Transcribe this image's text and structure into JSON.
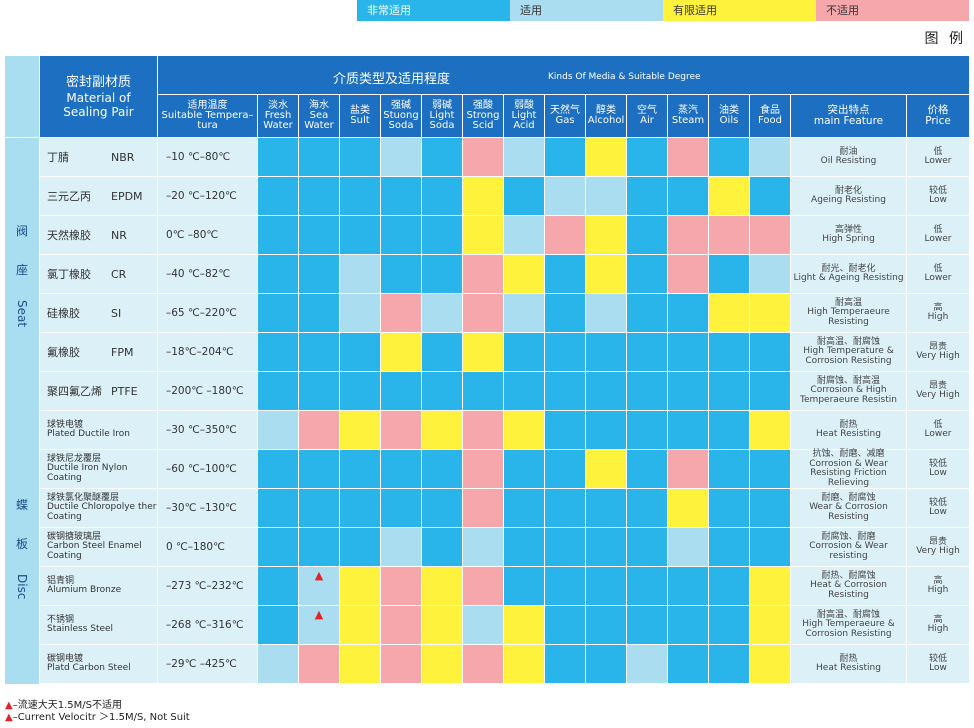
{
  "legend": {
    "title": "图 例",
    "items": [
      {
        "label": "非常适用",
        "color": "#29b5ea",
        "text_color": "#ffffff"
      },
      {
        "label": "适用",
        "color": "#a9ddef",
        "text_color": "#333333"
      },
      {
        "label": "有限适用",
        "color": "#fff23d",
        "text_color": "#333333"
      },
      {
        "label": "不适用",
        "color": "#f5a7ac",
        "text_color": "#333333"
      }
    ]
  },
  "header": {
    "material_cn": "密封副材质",
    "material_en": "Material of Sealing Pair",
    "media_cn": "介质类型及适用程度",
    "media_en": "Kinds Of Media & Suitable Degree",
    "temp_cn": "适用温度",
    "temp_en": "Suitable Tempera–tura",
    "columns": [
      {
        "cn": "淡水",
        "en": "Fresh Water"
      },
      {
        "cn": "海水",
        "en": "Sea Water"
      },
      {
        "cn": "盐类",
        "en": "Sult"
      },
      {
        "cn": "强碱",
        "en": "Stuong Soda"
      },
      {
        "cn": "弱碱",
        "en": "Light Soda"
      },
      {
        "cn": "强酸",
        "en": "Strong Scid"
      },
      {
        "cn": "弱酸",
        "en": "Light Acid"
      },
      {
        "cn": "天然气",
        "en": "Gas"
      },
      {
        "cn": "醇类",
        "en": "Alcohol"
      },
      {
        "cn": "空气",
        "en": "Air"
      },
      {
        "cn": "蒸汽",
        "en": "Steam"
      },
      {
        "cn": "油类",
        "en": "Oils"
      },
      {
        "cn": "食品",
        "en": "Food"
      }
    ],
    "feature_cn": "突出特点",
    "feature_en": "main Feature",
    "price_cn": "价格",
    "price_en": "Price"
  },
  "groups": [
    {
      "cn1": "阀",
      "cn2": "座",
      "en": "Seat"
    },
    {
      "cn1": "蝶",
      "cn2": "板",
      "en": "Disc"
    }
  ],
  "rows": [
    {
      "cn": "丁腈",
      "en": "NBR",
      "temp": "–10 ℃–80℃",
      "cells": [
        "vs",
        "vs",
        "vs",
        "s",
        "vs",
        "n",
        "s",
        "vs",
        "l",
        "vs",
        "n",
        "vs",
        "s"
      ],
      "feat_cn": "耐油",
      "feat_en": "Oil Resisting",
      "price_cn": "低",
      "price_en": "Lower"
    },
    {
      "cn": "三元乙丙",
      "en": "EPDM",
      "temp": "–20 ℃–120℃",
      "cells": [
        "vs",
        "vs",
        "vs",
        "vs",
        "vs",
        "l",
        "vs",
        "s",
        "s",
        "vs",
        "vs",
        "l",
        "vs"
      ],
      "feat_cn": "耐老化",
      "feat_en": "Ageing Resisting",
      "price_cn": "较低",
      "price_en": "Low"
    },
    {
      "cn": "天然橡胶",
      "en": "NR",
      "temp": "0℃ –80℃",
      "cells": [
        "vs",
        "vs",
        "vs",
        "vs",
        "vs",
        "l",
        "s",
        "n",
        "l",
        "vs",
        "n",
        "n",
        "n"
      ],
      "feat_cn": "高弹性",
      "feat_en": "High Spring",
      "price_cn": "低",
      "price_en": "Lower"
    },
    {
      "cn": "氯丁橡胶",
      "en": "CR",
      "temp": "–40 ℃–82℃",
      "cells": [
        "vs",
        "vs",
        "s",
        "vs",
        "vs",
        "n",
        "l",
        "vs",
        "l",
        "vs",
        "n",
        "vs",
        "s"
      ],
      "feat_cn": "耐光、耐老化",
      "feat_en": "Light & Ageing Resisting",
      "price_cn": "低",
      "price_en": "Lower"
    },
    {
      "cn": "硅橡胶",
      "en": "SI",
      "temp": "–65 ℃–220℃",
      "cells": [
        "vs",
        "vs",
        "s",
        "n",
        "s",
        "n",
        "s",
        "vs",
        "s",
        "vs",
        "vs",
        "l",
        "l"
      ],
      "feat_cn": "耐高温",
      "feat_en": "High Temperaeure Resisting",
      "price_cn": "高",
      "price_en": "High"
    },
    {
      "cn": "氟橡胶",
      "en": "FPM",
      "temp": "–18℃–204℃",
      "cells": [
        "vs",
        "vs",
        "vs",
        "l",
        "vs",
        "l",
        "vs",
        "vs",
        "vs",
        "vs",
        "vs",
        "vs",
        "vs"
      ],
      "feat_cn": "耐高温、耐腐蚀",
      "feat_en": "High Temperature & Corrosion Resisting",
      "price_cn": "昂贵",
      "price_en": "Very High"
    },
    {
      "cn": "聚四氟乙烯",
      "en": "PTFE",
      "temp": "–200℃ –180℃",
      "cells": [
        "vs",
        "vs",
        "vs",
        "vs",
        "vs",
        "vs",
        "vs",
        "vs",
        "vs",
        "vs",
        "vs",
        "vs",
        "vs"
      ],
      "feat_cn": "耐腐蚀、耐高温",
      "feat_en": "Corrosion & High Temperaeure Resistin",
      "price_cn": "昂贵",
      "price_en": "Very High"
    },
    {
      "cn": "球铁电镀",
      "en": "Plated Ductile Iron",
      "temp": "–30 ℃–350℃",
      "cells": [
        "s",
        "n",
        "l",
        "n",
        "l",
        "n",
        "l",
        "vs",
        "vs",
        "vs",
        "vs",
        "vs",
        "l"
      ],
      "feat_cn": "耐热",
      "feat_en": "Heat Resisting",
      "price_cn": "低",
      "price_en": "Lower"
    },
    {
      "cn": "球铁尼龙覆层",
      "en": "Ductile Iron Nylon Coating",
      "temp": "–60 ℃–100℃",
      "cells": [
        "vs",
        "vs",
        "vs",
        "vs",
        "vs",
        "n",
        "vs",
        "vs",
        "l",
        "vs",
        "n",
        "vs",
        "vs"
      ],
      "feat_cn": "抗蚀、耐磨、减磨",
      "feat_en": "Corrosion & Wear Resisting Friction Relieving",
      "price_cn": "较低",
      "price_en": "Low"
    },
    {
      "cn": "球铁氯化聚醚覆层",
      "en": "Ductile Chloropolye ther Coating",
      "temp": "–30℃ –130℃",
      "cells": [
        "vs",
        "vs",
        "vs",
        "vs",
        "vs",
        "n",
        "vs",
        "vs",
        "vs",
        "vs",
        "l",
        "vs",
        "vs"
      ],
      "feat_cn": "耐磨、耐腐蚀",
      "feat_en": "Wear & Corrosion Resisting",
      "price_cn": "较低",
      "price_en": "Low"
    },
    {
      "cn": "碳钢搪玻璃层",
      "en": "Carbon Steel Enamel Coating",
      "temp": "0 ℃–180℃",
      "cells": [
        "vs",
        "vs",
        "vs",
        "s",
        "vs",
        "s",
        "vs",
        "vs",
        "vs",
        "vs",
        "s",
        "vs",
        "vs"
      ],
      "feat_cn": "耐腐蚀、耐磨",
      "feat_en": "Corrosion & Wear resisting",
      "price_cn": "昂贵",
      "price_en": "Very High"
    },
    {
      "cn": "铝青铜",
      "en": "Alumium Bronze",
      "temp": "–273 ℃–232℃",
      "cells": [
        "vs",
        "s",
        "l",
        "n",
        "l",
        "n",
        "vs",
        "vs",
        "vs",
        "vs",
        "vs",
        "vs",
        "l"
      ],
      "tri": [
        1
      ],
      "feat_cn": "耐热、耐腐蚀",
      "feat_en": "Heat & Corrosion Resisting",
      "price_cn": "高",
      "price_en": "High"
    },
    {
      "cn": "不锈钢",
      "en": "Stainless Steel",
      "temp": "–268 ℃–316℃",
      "cells": [
        "vs",
        "s",
        "l",
        "n",
        "l",
        "s",
        "l",
        "vs",
        "vs",
        "vs",
        "vs",
        "vs",
        "l"
      ],
      "tri": [
        1
      ],
      "feat_cn": "耐高温、耐腐蚀",
      "feat_en": "High Temperaeure & Corrosion Resisting",
      "price_cn": "高",
      "price_en": "High"
    },
    {
      "cn": "碳钢电镀",
      "en": "Platd Carbon Steel",
      "temp": "–29℃ –425℃",
      "cells": [
        "s",
        "n",
        "l",
        "n",
        "l",
        "n",
        "l",
        "vs",
        "vs",
        "s",
        "vs",
        "vs",
        "l"
      ],
      "feat_cn": "耐热",
      "feat_en": "Heat Resisting",
      "price_cn": "较低",
      "price_en": "Low"
    }
  ],
  "notes": {
    "line1": "–流速大天1.5M/S不适用",
    "line2": "–Current Velocitr ＞1.5M/S, Not Suit"
  }
}
